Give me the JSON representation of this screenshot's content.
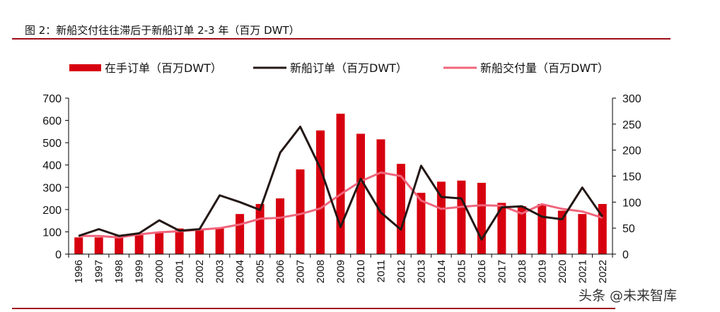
{
  "title": "图 2：新船交付往往滞后于新船订单 2-3 年（百万 DWT）",
  "watermark": "头条 @未来智库",
  "colors": {
    "bar": "#d7000f",
    "orders": "#231815",
    "deliveries": "#f0657b",
    "rule": "#a00d16"
  },
  "chart_data": {
    "type": "bar+line",
    "categories": [
      "1996",
      "1997",
      "1998",
      "1999",
      "2000",
      "2001",
      "2002",
      "2003",
      "2004",
      "2005",
      "2006",
      "2007",
      "2008",
      "2009",
      "2010",
      "2011",
      "2012",
      "2013",
      "2014",
      "2015",
      "2016",
      "2017",
      "2018",
      "2019",
      "2020",
      "2021",
      "2022"
    ],
    "series": [
      {
        "name": "在手订单（百万DWT）",
        "type": "bar",
        "axis": "left",
        "values": [
          75,
          75,
          85,
          85,
          100,
          115,
          115,
          120,
          180,
          225,
          250,
          380,
          555,
          630,
          540,
          515,
          405,
          275,
          325,
          330,
          320,
          230,
          215,
          225,
          195,
          180,
          225
        ]
      },
      {
        "name": "新船订单（百万DWT）",
        "type": "line",
        "axis": "right",
        "values": [
          35,
          48,
          35,
          40,
          65,
          45,
          48,
          113,
          100,
          85,
          195,
          245,
          165,
          52,
          145,
          80,
          47,
          170,
          110,
          107,
          28,
          90,
          92,
          72,
          67,
          128,
          72
        ]
      },
      {
        "name": "新船交付量（百万DWT）",
        "type": "line",
        "axis": "right",
        "values": [
          35,
          35,
          32,
          38,
          42,
          44,
          47,
          50,
          57,
          68,
          70,
          77,
          88,
          115,
          140,
          157,
          150,
          103,
          87,
          91,
          94,
          93,
          78,
          96,
          87,
          82,
          70
        ]
      }
    ],
    "left_axis": {
      "ylim": [
        0,
        700
      ],
      "ticks": [
        "0",
        "100",
        "200",
        "300",
        "400",
        "500",
        "600",
        "700"
      ]
    },
    "right_axis": {
      "ylim": [
        0,
        300
      ],
      "ticks": [
        "0",
        "50",
        "100",
        "150",
        "200",
        "250",
        "300"
      ]
    },
    "grid": false,
    "legend": "top"
  }
}
